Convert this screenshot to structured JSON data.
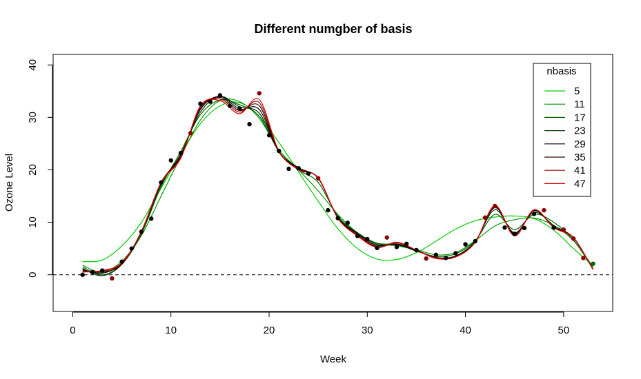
{
  "chart_data": {
    "type": "line",
    "title": "Different numgber of basis",
    "xlabel": "Week",
    "ylabel": "Ozone Level",
    "xlim": [
      -2,
      55
    ],
    "ylim": [
      -7,
      42
    ],
    "x_ticks": [
      0,
      10,
      20,
      30,
      40,
      50
    ],
    "y_ticks": [
      0,
      10,
      20,
      30,
      40
    ],
    "reference_line": {
      "y": 0,
      "style": "dashed",
      "color": "#000000"
    },
    "legend": {
      "title": "nbasis",
      "position": "top-right",
      "entries": [
        "5",
        "11",
        "17",
        "23",
        "29",
        "35",
        "41",
        "47"
      ]
    },
    "points": {
      "x": [
        1,
        2,
        3,
        4,
        5,
        6,
        7,
        8,
        9,
        10,
        11,
        12,
        13,
        14,
        15,
        16,
        17,
        18,
        19,
        20,
        21,
        22,
        23,
        24,
        25,
        26,
        27,
        28,
        29,
        30,
        31,
        32,
        33,
        34,
        35,
        36,
        37,
        38,
        39,
        40,
        41,
        42,
        43,
        44,
        45,
        46,
        47,
        48,
        49,
        50,
        51,
        52,
        53
      ],
      "y": [
        0.0,
        0.5,
        0.8,
        -0.7,
        2.5,
        5.0,
        8.2,
        10.7,
        17.6,
        21.8,
        23.2,
        27.0,
        32.6,
        33.0,
        34.2,
        32.2,
        31.7,
        28.7,
        34.6,
        26.6,
        23.6,
        20.2,
        20.3,
        19.3,
        18.4,
        12.3,
        10.8,
        9.9,
        7.4,
        6.8,
        5.1,
        7.1,
        5.3,
        5.9,
        4.7,
        3.1,
        3.8,
        3.2,
        4.1,
        5.8,
        6.4,
        10.9,
        13.1,
        9.0,
        7.8,
        8.9,
        11.6,
        12.3,
        9.0,
        8.6,
        6.9,
        3.2,
        2.1
      ],
      "colors": [
        "#000000",
        "#000000",
        "#000000",
        "#8b0000",
        "#000000",
        "#000000",
        "#000000",
        "#000000",
        "#000000",
        "#000000",
        "#000000",
        "#8b0000",
        "#000000",
        "#000000",
        "#000000",
        "#000000",
        "#000000",
        "#000000",
        "#8b0000",
        "#000000",
        "#000000",
        "#000000",
        "#000000",
        "#000000",
        "#8b0000",
        "#000000",
        "#000000",
        "#000000",
        "#000000",
        "#000000",
        "#000000",
        "#8b0000",
        "#000000",
        "#000000",
        "#000000",
        "#8b0000",
        "#000000",
        "#000000",
        "#000000",
        "#000000",
        "#000000",
        "#8b0000",
        "#8b0000",
        "#000000",
        "#000000",
        "#000000",
        "#000000",
        "#8b0000",
        "#000000",
        "#8b0000",
        "#8b0000",
        "#8b0000",
        "#006400"
      ]
    },
    "series": [
      {
        "name": "5",
        "color": "#00cc00",
        "x": [
          1,
          3,
          5,
          7,
          9,
          11,
          13,
          15,
          17,
          19,
          21,
          23,
          25,
          27,
          29,
          31,
          33,
          35,
          37,
          39,
          41,
          43,
          45,
          47,
          49,
          51,
          53
        ],
        "y": [
          2.5,
          2.8,
          5.5,
          10.0,
          16.5,
          23.0,
          28.8,
          32.2,
          32.8,
          30.2,
          25.2,
          19.6,
          14.0,
          8.8,
          5.0,
          3.0,
          2.9,
          4.2,
          6.4,
          8.7,
          10.3,
          11.0,
          11.2,
          10.7,
          8.5,
          5.0,
          1.7
        ]
      },
      {
        "name": "11",
        "color": "#009900",
        "x": [
          1,
          3,
          5,
          7,
          9,
          11,
          13,
          15,
          17,
          19,
          21,
          23,
          25,
          27,
          29,
          31,
          33,
          35,
          37,
          39,
          41,
          43,
          45,
          47,
          49,
          51,
          53
        ],
        "y": [
          1.8,
          0.5,
          2.6,
          7.5,
          15.0,
          22.5,
          29.5,
          33.2,
          33.0,
          29.8,
          23.8,
          20.0,
          16.0,
          11.5,
          8.0,
          6.0,
          5.5,
          4.8,
          3.8,
          4.2,
          6.5,
          9.3,
          10.5,
          10.8,
          9.4,
          6.5,
          1.5
        ]
      },
      {
        "name": "17",
        "color": "#006600",
        "x": [
          1,
          3,
          5,
          7,
          9,
          11,
          13,
          15,
          17,
          19,
          21,
          23,
          25,
          27,
          29,
          31,
          33,
          35,
          37,
          39,
          41,
          43,
          45,
          47,
          49,
          51,
          53
        ],
        "y": [
          1.5,
          0.0,
          2.0,
          7.8,
          16.8,
          23.5,
          30.5,
          33.3,
          32.4,
          30.2,
          23.5,
          20.0,
          17.6,
          11.2,
          8.0,
          6.0,
          5.8,
          4.5,
          3.5,
          4.0,
          6.5,
          11.5,
          8.6,
          11.5,
          10.0,
          6.6,
          1.2
        ]
      },
      {
        "name": "23",
        "color": "#003300",
        "x": [
          1,
          3,
          5,
          7,
          9,
          11,
          13,
          15,
          17,
          19,
          21,
          23,
          25,
          27,
          29,
          31,
          33,
          35,
          37,
          39,
          41,
          43,
          45,
          47,
          49,
          51,
          53
        ],
        "y": [
          1.2,
          -0.2,
          2.0,
          8.0,
          17.2,
          23.0,
          31.0,
          34.0,
          32.0,
          30.8,
          23.5,
          20.4,
          18.4,
          11.0,
          8.0,
          5.8,
          5.7,
          4.6,
          3.3,
          3.6,
          6.4,
          12.4,
          8.0,
          11.9,
          9.4,
          7.0,
          1.0
        ]
      },
      {
        "name": "29",
        "color": "#000000",
        "x": [
          1,
          3,
          5,
          7,
          9,
          11,
          13,
          15,
          17,
          19,
          21,
          23,
          25,
          27,
          29,
          31,
          33,
          35,
          37,
          39,
          41,
          43,
          45,
          47,
          49,
          51,
          53
        ],
        "y": [
          1.0,
          0.3,
          2.2,
          8.2,
          17.5,
          22.8,
          31.5,
          34.0,
          31.6,
          31.5,
          23.4,
          20.3,
          18.4,
          10.9,
          7.8,
          5.6,
          5.8,
          4.6,
          3.3,
          3.5,
          6.3,
          12.8,
          7.8,
          12.2,
          9.1,
          7.1,
          1.0
        ]
      },
      {
        "name": "35",
        "color": "#330000",
        "x": [
          1,
          3,
          5,
          7,
          9,
          11,
          13,
          15,
          17,
          19,
          21,
          23,
          25,
          27,
          29,
          31,
          33,
          35,
          37,
          39,
          41,
          43,
          45,
          47,
          49,
          51,
          53
        ],
        "y": [
          0.8,
          0.5,
          2.0,
          8.3,
          17.6,
          22.6,
          31.8,
          33.8,
          31.3,
          32.2,
          23.4,
          20.2,
          18.4,
          10.8,
          7.6,
          5.4,
          5.9,
          4.7,
          3.3,
          3.4,
          6.2,
          13.0,
          7.6,
          12.3,
          9.0,
          7.0,
          1.0
        ]
      },
      {
        "name": "41",
        "color": "#990000",
        "x": [
          1,
          3,
          5,
          7,
          9,
          11,
          13,
          15,
          17,
          19,
          21,
          23,
          25,
          27,
          29,
          31,
          33,
          35,
          37,
          39,
          41,
          43,
          45,
          47,
          49,
          51,
          53
        ],
        "y": [
          0.6,
          0.7,
          2.2,
          8.3,
          17.6,
          22.4,
          32.0,
          33.5,
          31.0,
          32.8,
          23.5,
          20.1,
          18.5,
          10.8,
          7.5,
          5.3,
          6.1,
          4.7,
          3.2,
          3.4,
          6.2,
          13.1,
          7.5,
          12.4,
          9.0,
          7.0,
          1.0
        ]
      },
      {
        "name": "47",
        "color": "#dd0000",
        "x": [
          1,
          3,
          5,
          7,
          9,
          11,
          13,
          15,
          17,
          19,
          21,
          23,
          25,
          27,
          29,
          31,
          33,
          35,
          37,
          39,
          41,
          43,
          45,
          47,
          49,
          51,
          53
        ],
        "y": [
          0.5,
          0.8,
          2.3,
          8.2,
          17.6,
          22.2,
          32.2,
          33.2,
          30.7,
          33.4,
          23.6,
          20.0,
          18.5,
          10.8,
          7.4,
          5.2,
          6.2,
          4.7,
          3.1,
          3.4,
          6.2,
          13.2,
          7.4,
          12.4,
          9.0,
          7.0,
          1.0
        ]
      }
    ]
  }
}
